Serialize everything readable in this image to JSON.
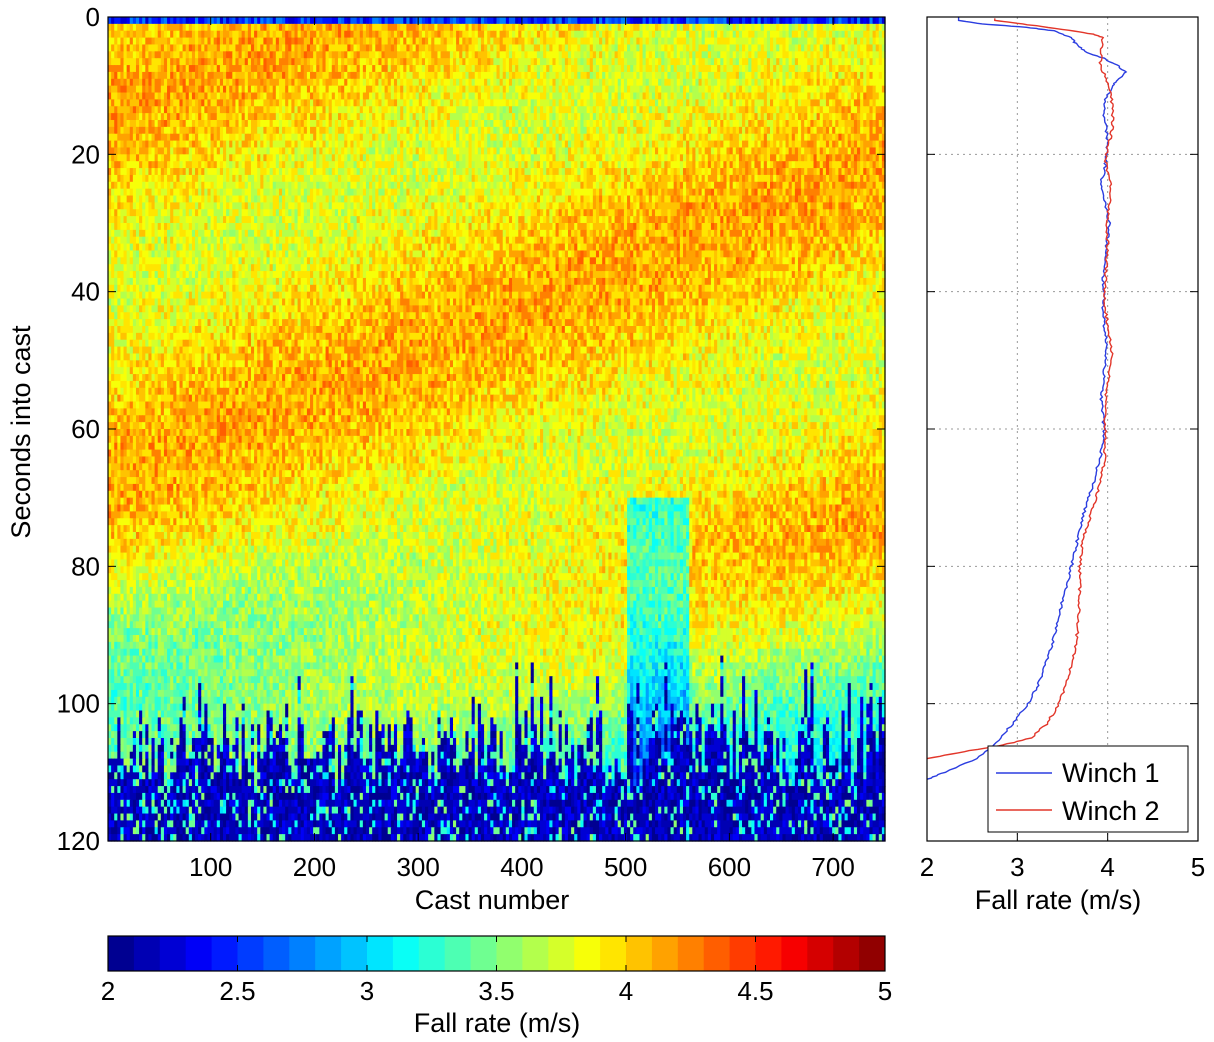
{
  "chart_data": [
    {
      "type": "heatmap",
      "title": "",
      "xlabel": "Cast number",
      "ylabel": "Seconds into cast",
      "xlim": [
        1,
        750
      ],
      "ylim": [
        0,
        120
      ],
      "y_direction": "down",
      "x_ticks": [
        100,
        200,
        300,
        400,
        500,
        600,
        700
      ],
      "y_ticks": [
        0,
        20,
        40,
        60,
        80,
        100,
        120
      ],
      "colorbar": {
        "label": "Fall rate (m/s)",
        "range": [
          2,
          5
        ],
        "ticks": [
          "2",
          "2.5",
          "3",
          "3.5",
          "4",
          "4.5",
          "5"
        ],
        "levels": 30,
        "placement": "bottom"
      },
      "description_of_field": {
        "typical_fall_rate_mid_cast": 3.9,
        "low_rate_region_starts_near_seconds": 100,
        "low_rate_value": 2.0
      }
    },
    {
      "type": "line",
      "xlabel": "Fall rate (m/s)",
      "ylabel": "",
      "xlim": [
        2,
        5
      ],
      "ylim": [
        0,
        120
      ],
      "y_direction": "down",
      "x_ticks": [
        2,
        3,
        4,
        5
      ],
      "y_ticks": [
        0,
        20,
        40,
        60,
        80,
        100,
        120
      ],
      "grid": true,
      "legend_position": "bottom-right",
      "series": [
        {
          "name": "Winch 1",
          "color": "#2b3de0",
          "points": [
            [
              2.35,
              0
            ],
            [
              2.35,
              0.5
            ],
            [
              2.6,
              1
            ],
            [
              3.1,
              1.5
            ],
            [
              3.4,
              2
            ],
            [
              3.6,
              3
            ],
            [
              3.65,
              4
            ],
            [
              3.75,
              5
            ],
            [
              3.95,
              6
            ],
            [
              4.1,
              7
            ],
            [
              4.2,
              8
            ],
            [
              4.12,
              9
            ],
            [
              4.05,
              10
            ],
            [
              3.98,
              12
            ],
            [
              3.96,
              14
            ],
            [
              3.98,
              16
            ],
            [
              4.0,
              18
            ],
            [
              3.99,
              20
            ],
            [
              3.97,
              22
            ],
            [
              3.93,
              24
            ],
            [
              3.96,
              26
            ],
            [
              3.98,
              28
            ],
            [
              4.02,
              30
            ],
            [
              4.0,
              32
            ],
            [
              3.98,
              34
            ],
            [
              3.96,
              36
            ],
            [
              3.95,
              38
            ],
            [
              3.96,
              40
            ],
            [
              3.95,
              42
            ],
            [
              3.96,
              44
            ],
            [
              3.97,
              46
            ],
            [
              3.99,
              48
            ],
            [
              3.98,
              50
            ],
            [
              3.96,
              52
            ],
            [
              3.94,
              54
            ],
            [
              3.93,
              56
            ],
            [
              3.95,
              58
            ],
            [
              3.96,
              60
            ],
            [
              3.95,
              62
            ],
            [
              3.92,
              64
            ],
            [
              3.88,
              66
            ],
            [
              3.84,
              68
            ],
            [
              3.79,
              70
            ],
            [
              3.74,
              72
            ],
            [
              3.7,
              74
            ],
            [
              3.67,
              76
            ],
            [
              3.63,
              78
            ],
            [
              3.6,
              80
            ],
            [
              3.56,
              82
            ],
            [
              3.52,
              84
            ],
            [
              3.48,
              86
            ],
            [
              3.45,
              88
            ],
            [
              3.41,
              90
            ],
            [
              3.37,
              92
            ],
            [
              3.32,
              94
            ],
            [
              3.27,
              96
            ],
            [
              3.2,
              98
            ],
            [
              3.12,
              100
            ],
            [
              3.0,
              102
            ],
            [
              2.88,
              104
            ],
            [
              2.75,
              106
            ],
            [
              2.55,
              108
            ],
            [
              2.2,
              110
            ],
            [
              2.0,
              111
            ]
          ]
        },
        {
          "name": "Winch 2",
          "color": "#e2362a",
          "points": [
            [
              2.75,
              0.2
            ],
            [
              2.75,
              0.5
            ],
            [
              3.05,
              1
            ],
            [
              3.5,
              1.8
            ],
            [
              3.85,
              2.5
            ],
            [
              3.95,
              3
            ],
            [
              3.93,
              5
            ],
            [
              3.92,
              7
            ],
            [
              3.98,
              9
            ],
            [
              4.03,
              11
            ],
            [
              4.05,
              13
            ],
            [
              4.06,
              15
            ],
            [
              4.04,
              17
            ],
            [
              4.0,
              19
            ],
            [
              3.98,
              21
            ],
            [
              4.01,
              23
            ],
            [
              4.04,
              25
            ],
            [
              4.03,
              27
            ],
            [
              4.0,
              29
            ],
            [
              3.99,
              31
            ],
            [
              4.0,
              33
            ],
            [
              3.99,
              35
            ],
            [
              3.98,
              37
            ],
            [
              3.97,
              39
            ],
            [
              3.97,
              41
            ],
            [
              3.98,
              43
            ],
            [
              4.0,
              45
            ],
            [
              4.03,
              47
            ],
            [
              4.05,
              49
            ],
            [
              4.03,
              51
            ],
            [
              4.0,
              53
            ],
            [
              3.98,
              55
            ],
            [
              3.97,
              57
            ],
            [
              3.97,
              59
            ],
            [
              3.98,
              61
            ],
            [
              3.97,
              63
            ],
            [
              3.96,
              65
            ],
            [
              3.93,
              67
            ],
            [
              3.89,
              69
            ],
            [
              3.85,
              71
            ],
            [
              3.8,
              73
            ],
            [
              3.75,
              75
            ],
            [
              3.72,
              77
            ],
            [
              3.7,
              79
            ],
            [
              3.69,
              81
            ],
            [
              3.69,
              83
            ],
            [
              3.69,
              85
            ],
            [
              3.68,
              87
            ],
            [
              3.67,
              89
            ],
            [
              3.65,
              91
            ],
            [
              3.62,
              93
            ],
            [
              3.58,
              95
            ],
            [
              3.54,
              97
            ],
            [
              3.49,
              99
            ],
            [
              3.42,
              101
            ],
            [
              3.32,
              103
            ],
            [
              3.15,
              105
            ],
            [
              2.85,
              106
            ],
            [
              2.4,
              107
            ],
            [
              2.0,
              108
            ]
          ]
        }
      ]
    }
  ]
}
